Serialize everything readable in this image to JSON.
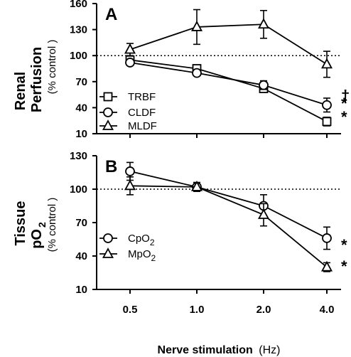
{
  "chart_data": [
    {
      "type": "line",
      "panel_label": "A",
      "ylabel": [
        "Renal",
        "Perfusion"
      ],
      "ylabel_sub": "(% control )",
      "x": [
        "0.5",
        "1.0",
        "2.0",
        "4.0"
      ],
      "ylim": [
        10,
        160
      ],
      "yticks": [
        10,
        40,
        70,
        100,
        130,
        160
      ],
      "reference_line": 100,
      "series": [
        {
          "name": "TRBF",
          "marker": "square",
          "values": [
            95,
            85,
            62,
            24
          ],
          "errors": [
            3,
            3,
            4,
            5
          ]
        },
        {
          "name": "CLDF",
          "marker": "circle",
          "values": [
            92,
            80,
            66,
            43
          ],
          "errors": [
            3,
            3,
            5,
            8
          ]
        },
        {
          "name": "MLDF",
          "marker": "triangle",
          "values": [
            107,
            133,
            136,
            90
          ],
          "errors": [
            7,
            20,
            16,
            15
          ]
        }
      ],
      "significance": [
        "†",
        "*",
        "*"
      ],
      "legend_position": "bottom-left"
    },
    {
      "type": "line",
      "panel_label": "B",
      "ylabel": [
        "Tissue",
        "pO"
      ],
      "ylabel_subscript": "2",
      "ylabel_sub": "(% control )",
      "x": [
        "0.5",
        "1.0",
        "2.0",
        "4.0"
      ],
      "ylim": [
        10,
        130
      ],
      "yticks": [
        10,
        40,
        70,
        100,
        130
      ],
      "reference_line": 100,
      "series": [
        {
          "name": "CpO",
          "subscript": "2",
          "marker": "circle",
          "values": [
            116,
            102,
            85,
            56
          ],
          "errors": [
            8,
            4,
            10,
            10
          ]
        },
        {
          "name": "MpO",
          "subscript": "2",
          "marker": "triangle",
          "values": [
            103,
            102,
            77,
            30
          ],
          "errors": [
            8,
            4,
            10,
            4
          ]
        }
      ],
      "significance": [
        "*",
        "*"
      ],
      "legend_position": "bottom-left"
    }
  ],
  "xlabel_main": "Nerve stimulation",
  "xlabel_unit": "(Hz)"
}
